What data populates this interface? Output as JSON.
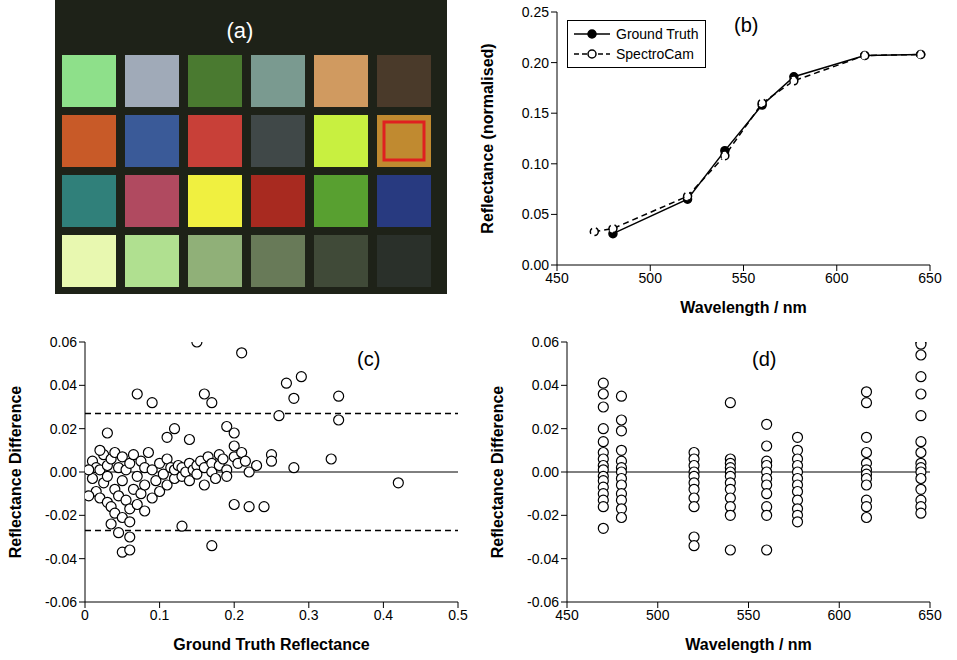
{
  "chart_data": [
    {
      "type": "swatches",
      "title": "(a)",
      "colors": [
        "#8ee08a",
        "#a0aab8",
        "#4a7a30",
        "#7a9a90",
        "#d09a60",
        "#4a3a2a",
        "#c85a28",
        "#3a5a98",
        "#c84038",
        "#404848",
        "#c8f040",
        "#c08a30",
        "#30807a",
        "#b04a60",
        "#f0f040",
        "#a82a20",
        "#58a030",
        "#283a80",
        "#e8f8b0",
        "#b0e090",
        "#90b078",
        "#687a58",
        "#404a38",
        "#2a302a"
      ]
    },
    {
      "type": "line",
      "title": "(b)",
      "xlabel": "Wavelength  /  nm",
      "ylabel": "Reflectance  (normalised)",
      "xlim": [
        450,
        650
      ],
      "xticks": [
        450,
        500,
        550,
        600,
        650
      ],
      "ylim": [
        0,
        0.25
      ],
      "yticks": [
        {
          "value": 0,
          "label": "0.00"
        },
        0.05,
        {
          "value": 0.1,
          "label": "0.10"
        },
        0.15,
        {
          "value": 0.2,
          "label": "0.20"
        },
        0.25
      ],
      "grid": false,
      "legend": "upper left",
      "series": [
        {
          "name": "Ground Truth",
          "color": "#000000",
          "marker": "filled_circle",
          "line_style": "solid",
          "x": [
            480,
            520,
            540,
            560,
            577,
            615,
            645
          ],
          "values": [
            0.031,
            0.065,
            0.113,
            0.158,
            0.186,
            0.207,
            0.208
          ]
        },
        {
          "name": "SpectroCam",
          "color": "#000000",
          "marker": "open_circle",
          "line_style": "dashed",
          "x": [
            470,
            480,
            520,
            540,
            560,
            577,
            615,
            645
          ],
          "values": [
            0.033,
            0.036,
            0.068,
            0.108,
            0.16,
            0.182,
            0.207,
            0.208
          ]
        }
      ]
    },
    {
      "type": "scatter",
      "title": "(c)",
      "xlabel": "Ground Truth Reflectance",
      "ylabel": "Reflectance Difference",
      "xlim": [
        0,
        0.5
      ],
      "xticks": [
        0,
        0.1,
        0.2,
        0.3,
        0.4,
        0.5
      ],
      "ylim": [
        -0.06,
        0.06
      ],
      "yticks": [
        -0.06,
        -0.04,
        -0.02,
        {
          "value": 0,
          "label": "0.00"
        },
        0.02,
        0.04,
        0.06
      ],
      "grid": false,
      "color": "#000000",
      "marker": "open_circle",
      "baseline": 0,
      "limits": [
        0.027,
        -0.027
      ],
      "x": [
        0.01,
        0.01,
        0.015,
        0.015,
        0.02,
        0.02,
        0.025,
        0.025,
        0.03,
        0.03,
        0.03,
        0.035,
        0.035,
        0.04,
        0.04,
        0.04,
        0.045,
        0.045,
        0.05,
        0.05,
        0.05,
        0.055,
        0.055,
        0.06,
        0.06,
        0.06,
        0.065,
        0.065,
        0.07,
        0.07,
        0.075,
        0.075,
        0.08,
        0.08,
        0.08,
        0.085,
        0.09,
        0.09,
        0.095,
        0.1,
        0.1,
        0.105,
        0.11,
        0.11,
        0.115,
        0.12,
        0.12,
        0.125,
        0.13,
        0.13,
        0.135,
        0.14,
        0.14,
        0.145,
        0.15,
        0.15,
        0.155,
        0.16,
        0.16,
        0.165,
        0.17,
        0.17,
        0.175,
        0.18,
        0.18,
        0.185,
        0.19,
        0.19,
        0.2,
        0.2,
        0.205,
        0.21,
        0.215,
        0.22,
        0.23,
        0.24,
        0.03,
        0.02,
        0.005,
        0.005,
        0.035,
        0.045,
        0.07,
        0.09,
        0.05,
        0.06,
        0.06,
        0.13,
        0.17,
        0.15,
        0.21,
        0.16,
        0.17,
        0.27,
        0.29,
        0.28,
        0.34,
        0.34,
        0.33,
        0.42,
        0.22,
        0.2,
        0.28,
        0.25,
        0.25,
        0.26,
        0.19,
        0.2,
        0.12,
        0.11,
        0.14
      ],
      "values": [
        0.005,
        -0.003,
        0.002,
        -0.009,
        -0.012,
        0.001,
        -0.005,
        0.008,
        -0.014,
        0.003,
        -0.002,
        -0.016,
        0.006,
        -0.008,
        -0.019,
        0.009,
        -0.011,
        0.002,
        -0.021,
        -0.004,
        0.007,
        -0.013,
        0.001,
        -0.023,
        -0.017,
        0.004,
        -0.008,
        0.008,
        -0.015,
        -0.002,
        -0.01,
        0.005,
        -0.006,
        -0.018,
        0.002,
        0.009,
        -0.012,
        0.001,
        -0.004,
        0.004,
        -0.009,
        -0.001,
        -0.006,
        0.006,
        0.002,
        -0.003,
        0.001,
        0.003,
        -0.002,
        0.002,
        0,
        0.004,
        -0.004,
        0.001,
        0.003,
        -0.001,
        0.005,
        0.002,
        -0.006,
        0.007,
        0.004,
        0,
        -0.003,
        0.008,
        0.003,
        0.006,
        0.001,
        -0.002,
        0.007,
        0.012,
        0.004,
        0.009,
        0.005,
        0,
        0.003,
        -0.016,
        0.018,
        0.01,
        -0.011,
        0.001,
        -0.024,
        -0.028,
        0.036,
        0.032,
        -0.037,
        -0.036,
        -0.03,
        -0.025,
        -0.034,
        0.06,
        0.055,
        0.036,
        0.032,
        0.041,
        0.044,
        0.034,
        0.035,
        0.024,
        0.006,
        -0.005,
        -0.016,
        -0.015,
        0.002,
        0.008,
        0.005,
        0.026,
        0.021,
        0.018,
        0.02,
        0.016,
        0.015
      ]
    },
    {
      "type": "scatter",
      "title": "(d)",
      "xlabel": "Wavelength  /  nm",
      "ylabel": "Reflectance Difference",
      "xlim": [
        450,
        650
      ],
      "xticks": [
        450,
        500,
        550,
        600,
        650
      ],
      "ylim": [
        -0.06,
        0.06
      ],
      "yticks": [
        -0.06,
        -0.04,
        -0.02,
        {
          "value": 0,
          "label": "0.00"
        },
        0.02,
        0.04,
        0.06
      ],
      "grid": false,
      "color": "#000000",
      "marker": "open_circle",
      "baseline": 0,
      "x": [
        470,
        470,
        470,
        470,
        470,
        470,
        470,
        470,
        470,
        470,
        470,
        470,
        470,
        470,
        470,
        470,
        480,
        480,
        480,
        480,
        480,
        480,
        480,
        480,
        480,
        480,
        480,
        480,
        480,
        520,
        520,
        520,
        520,
        520,
        520,
        520,
        520,
        520,
        520,
        520,
        540,
        540,
        540,
        540,
        540,
        540,
        540,
        540,
        540,
        540,
        540,
        540,
        560,
        560,
        560,
        560,
        560,
        560,
        560,
        560,
        560,
        560,
        560,
        577,
        577,
        577,
        577,
        577,
        577,
        577,
        577,
        577,
        577,
        577,
        577,
        615,
        615,
        615,
        615,
        615,
        615,
        615,
        615,
        615,
        615,
        615,
        615,
        645,
        645,
        645,
        645,
        645,
        645,
        645,
        645,
        645,
        645,
        645,
        645,
        645,
        645,
        645,
        645
      ],
      "values": [
        0.041,
        0.036,
        0.03,
        0.02,
        0.014,
        0.009,
        0.006,
        0.003,
        0.001,
        -0.002,
        -0.004,
        -0.007,
        -0.01,
        -0.013,
        -0.016,
        -0.026,
        0.035,
        0.024,
        0.019,
        0.01,
        0.005,
        0.002,
        0,
        -0.003,
        -0.006,
        -0.01,
        -0.013,
        -0.017,
        -0.021,
        0.009,
        0.006,
        0.003,
        0,
        -0.002,
        -0.005,
        -0.008,
        -0.012,
        -0.016,
        -0.03,
        -0.034,
        0.032,
        0.006,
        0.004,
        0.002,
        0,
        -0.002,
        -0.005,
        -0.008,
        -0.012,
        -0.016,
        -0.02,
        -0.036,
        0.022,
        0.012,
        0.005,
        0.003,
        0,
        -0.003,
        -0.006,
        -0.01,
        -0.016,
        -0.02,
        -0.036,
        0.016,
        0.01,
        0.006,
        0.003,
        0,
        -0.003,
        -0.006,
        -0.009,
        -0.013,
        -0.017,
        -0.02,
        -0.023,
        0.037,
        0.032,
        0.016,
        0.009,
        0.004,
        0.001,
        -0.001,
        -0.003,
        -0.006,
        -0.013,
        -0.016,
        -0.021,
        0.06,
        0.059,
        0.054,
        0.044,
        0.036,
        0.026,
        0.014,
        0.009,
        0.004,
        0.002,
        0,
        -0.003,
        -0.008,
        -0.013,
        -0.016,
        -0.019
      ]
    }
  ]
}
